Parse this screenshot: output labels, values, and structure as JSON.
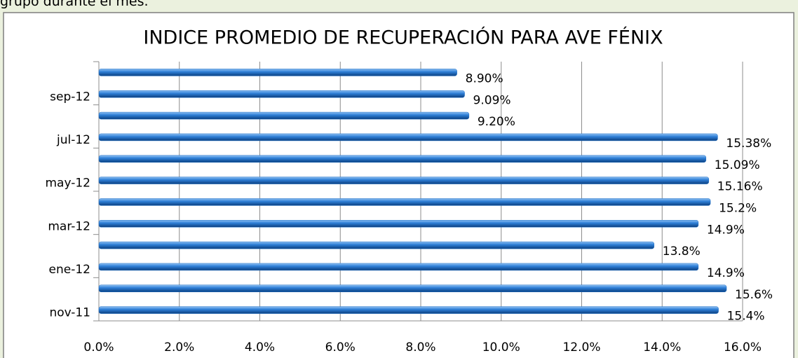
{
  "page_text": "grupo durante el mes.",
  "chart_data": {
    "type": "hbar",
    "title": "INDICE PROMEDIO DE RECUPERACIÓN PARA AVE FÉNIX",
    "categories": [
      "nov-11",
      null,
      "ene-12",
      null,
      "mar-12",
      null,
      "may-12",
      null,
      "jul-12",
      null,
      "sep-12",
      null
    ],
    "values": [
      15.4,
      15.6,
      14.9,
      13.8,
      14.9,
      15.2,
      15.16,
      15.09,
      15.38,
      9.2,
      9.09,
      8.9
    ],
    "value_labels": [
      "15.4%",
      "15.6%",
      "14.9%",
      "13.8%",
      "14.9%",
      "15.2%",
      "15.16%",
      "15.09%",
      "15.38%",
      "9.20%",
      "9.09%",
      "8.90%"
    ],
    "color": "#1f6fc5",
    "xlim": [
      0,
      16
    ],
    "xticks": [
      {
        "value": 0,
        "label": "0.0%"
      },
      {
        "value": 2,
        "label": "2.0%"
      },
      {
        "value": 4,
        "label": "4.0%"
      },
      {
        "value": 6,
        "label": "6.0%"
      },
      {
        "value": 8,
        "label": "8.0%"
      },
      {
        "value": 10,
        "label": "10.0%"
      },
      {
        "value": 12,
        "label": "12.0%"
      },
      {
        "value": 14,
        "label": "14.0%"
      },
      {
        "value": 16,
        "label": "16.0%"
      }
    ],
    "grid": true
  }
}
